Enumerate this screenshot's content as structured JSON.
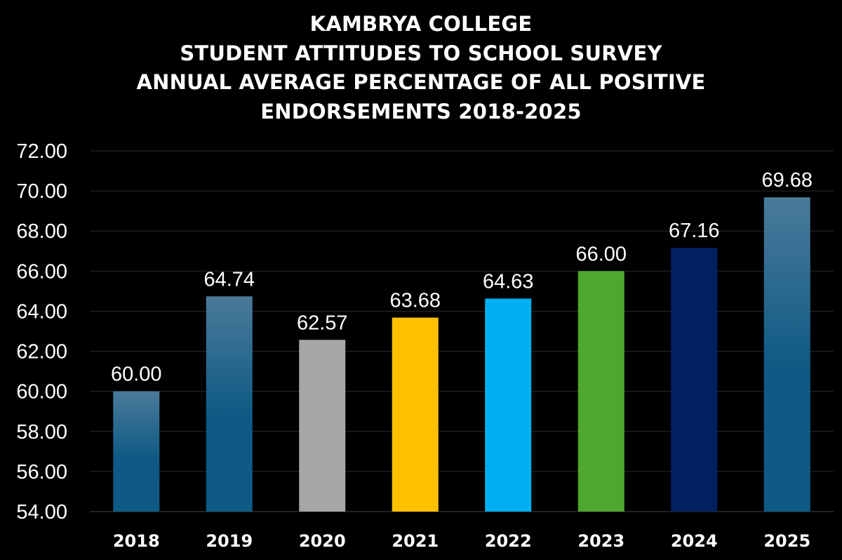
{
  "chart_data": {
    "type": "bar",
    "title_lines": [
      "KAMBRYA COLLEGE",
      "STUDENT ATTITUDES TO SCHOOL SURVEY",
      "ANNUAL AVERAGE PERCENTAGE OF ALL POSITIVE",
      "ENDORSEMENTS 2018-2025"
    ],
    "categories": [
      "2018",
      "2019",
      "2020",
      "2021",
      "2022",
      "2023",
      "2024",
      "2025"
    ],
    "values": [
      60.0,
      64.74,
      62.57,
      63.68,
      64.63,
      66.0,
      67.16,
      69.68
    ],
    "data_labels": [
      "60.00",
      "64.74",
      "62.57",
      "63.68",
      "64.63",
      "66.00",
      "67.16",
      "69.68"
    ],
    "ylim": [
      54,
      72
    ],
    "yticks": [
      "54.00",
      "56.00",
      "58.00",
      "60.00",
      "62.00",
      "64.00",
      "66.00",
      "68.00",
      "70.00",
      "72.00"
    ],
    "xlabel": "",
    "ylabel": "",
    "grid": true,
    "legend": "none",
    "bar_colors": [
      "gradient-blue",
      "gradient-blue",
      "#a6a6a6",
      "#ffc000",
      "#00b0f0",
      "#4ea72e",
      "#002060",
      "gradient-blue"
    ],
    "gradient_colors": [
      "#4a7a9a",
      "#0e5a84"
    ],
    "background": "#000000"
  }
}
